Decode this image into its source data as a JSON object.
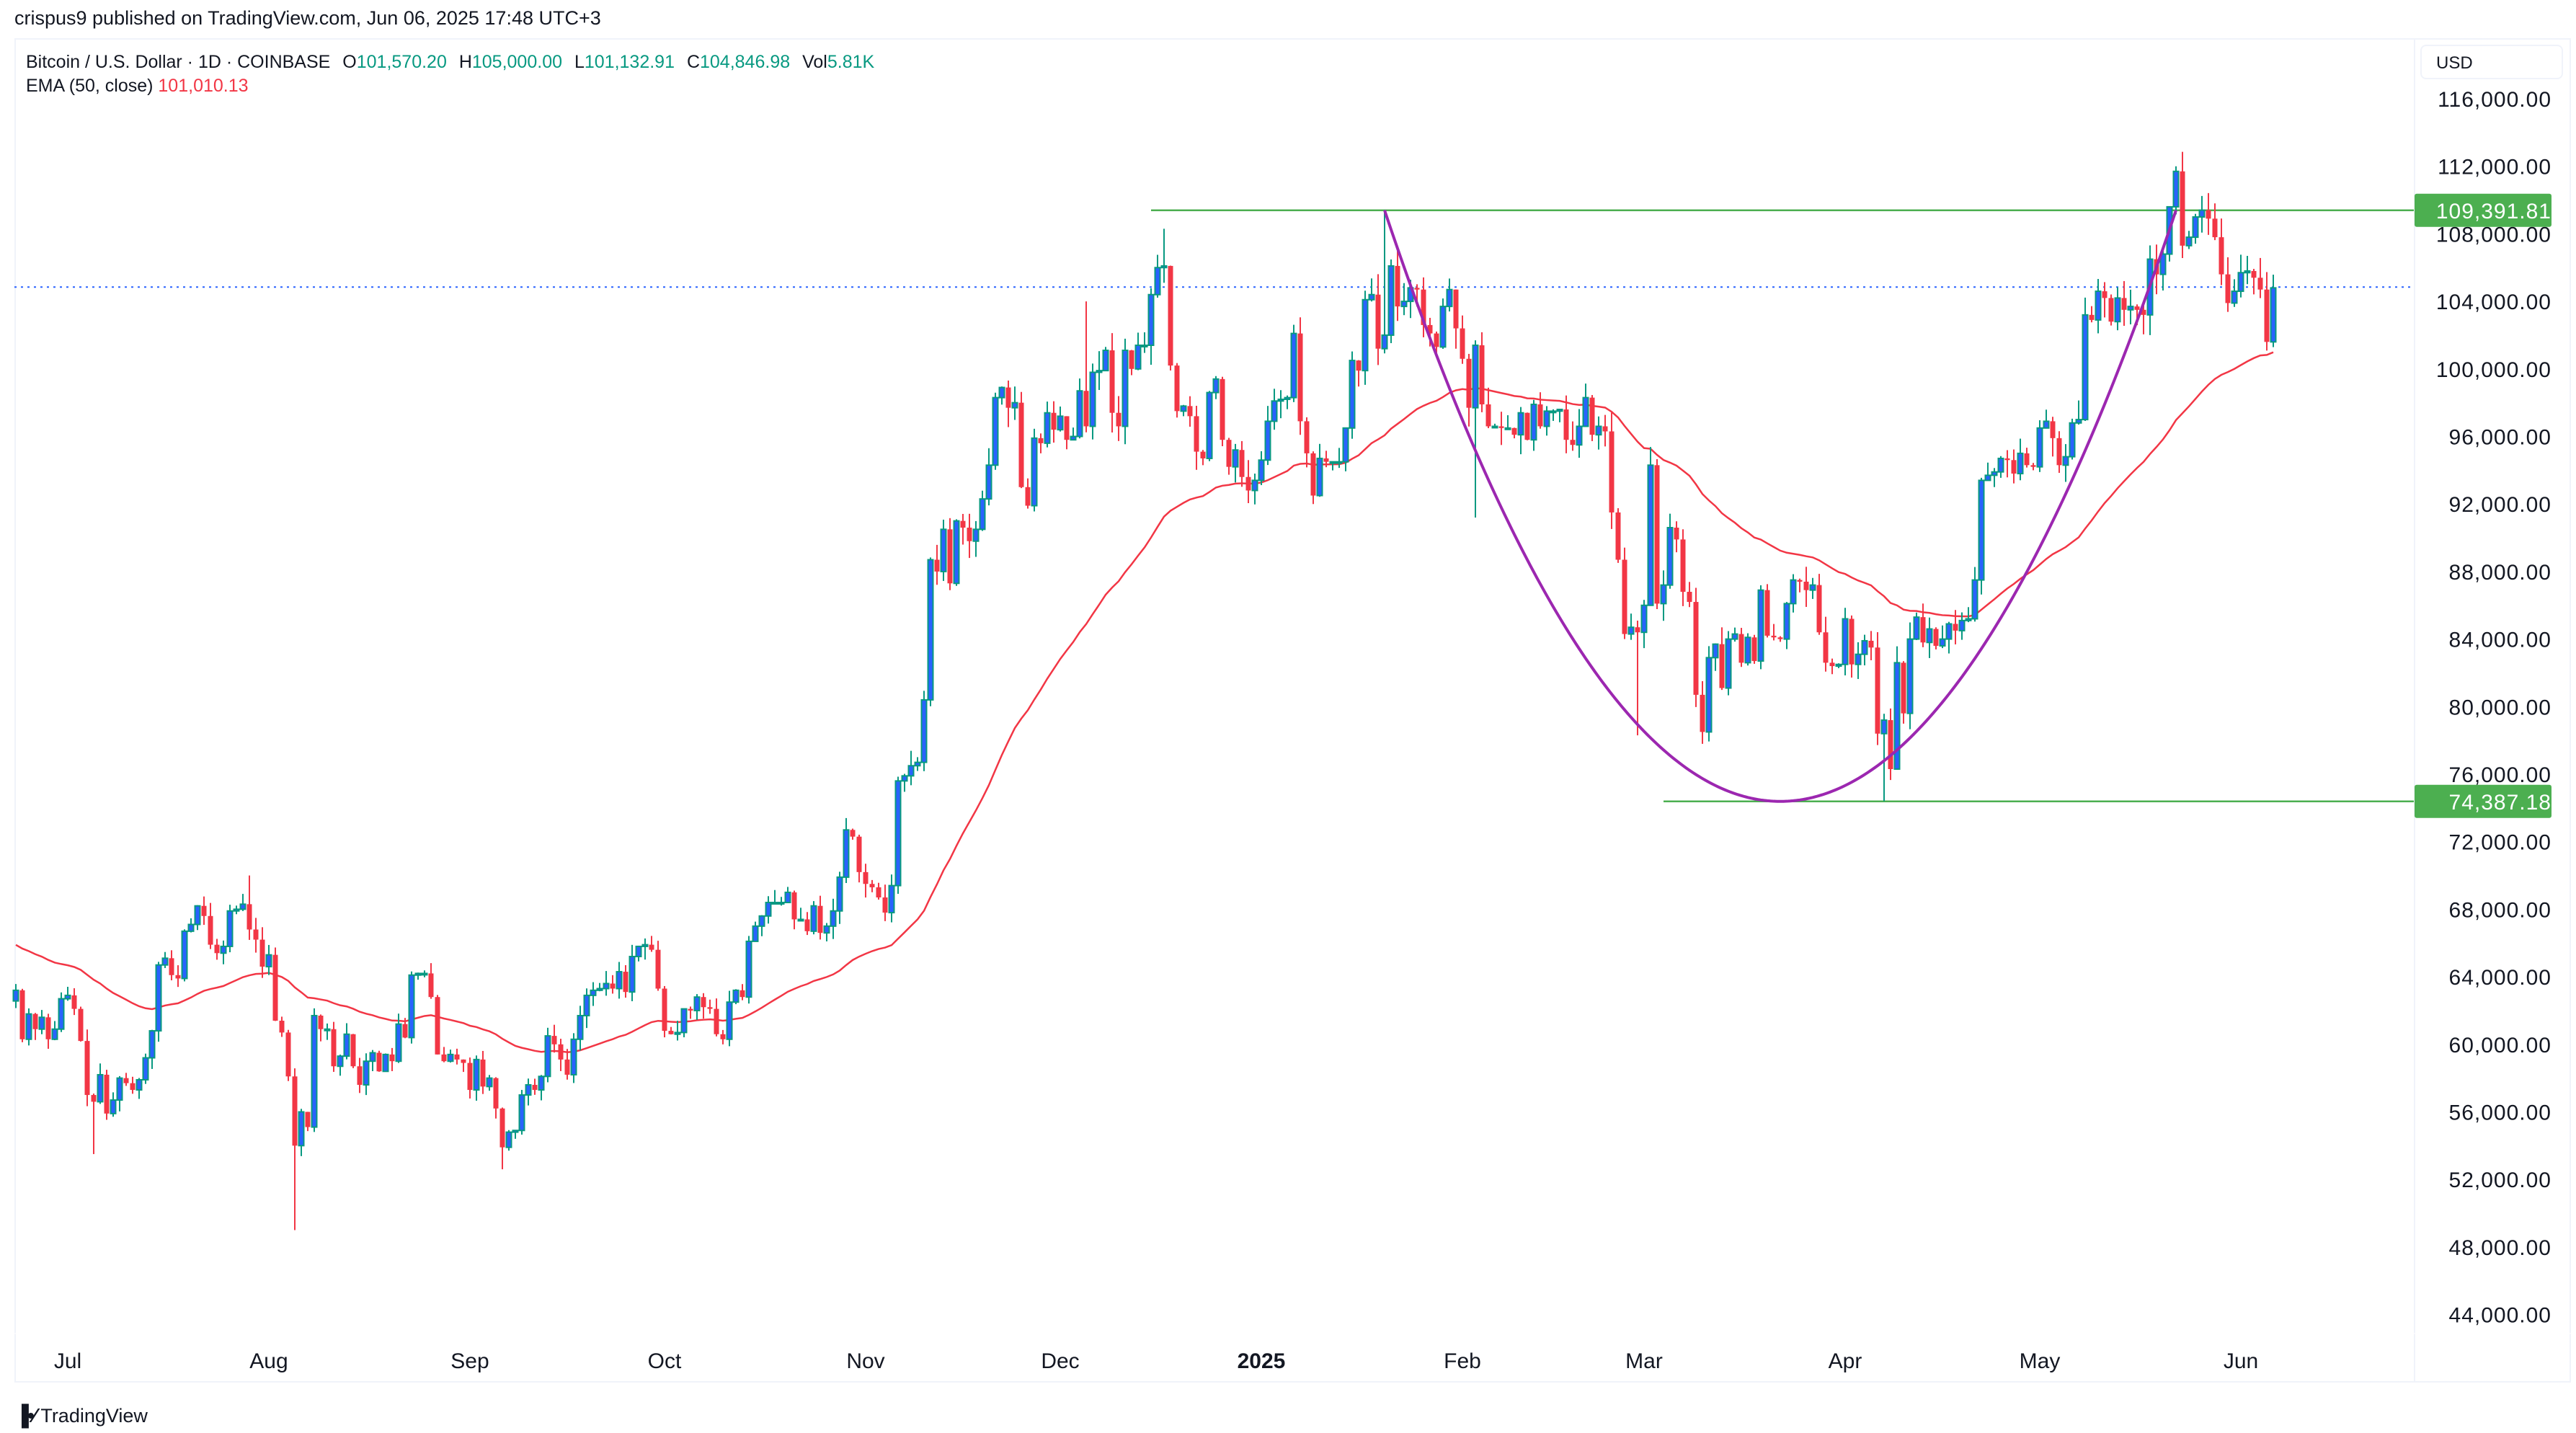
{
  "publisher_line": "crispus9 published on TradingView.com, Jun 06, 2025 17:48 UTC+3",
  "legend": {
    "symbol": "Bitcoin / U.S. Dollar · 1D · COINBASE",
    "open_label": "O",
    "open": "101,570.20",
    "high_label": "H",
    "high": "105,000.00",
    "low_label": "L",
    "low": "101,132.91",
    "close_label": "C",
    "close": "104,846.98",
    "vol_label": "Vol",
    "vol": "5.81K",
    "ema_label": "EMA (50, close)",
    "ema_value": "101,010.13"
  },
  "currency": "USD",
  "footer_brand": "TradingView",
  "colors": {
    "up_body": "#2962ff",
    "up_border": "#089981",
    "down": "#f23645",
    "ema": "#f23645",
    "level": "#4caf50",
    "cup": "#9c27b0",
    "last_price_line": "#2962ff"
  },
  "chart_data": {
    "type": "candlestick",
    "title": "",
    "start_date": "2024-06-23",
    "end_date": "2025-06-06",
    "interval": "1D",
    "unit": "USD (thousands in closes)",
    "closes_k": [
      63.2,
      60.3,
      61.8,
      60.9,
      61.6,
      60.3,
      60.9,
      62.7,
      62.9,
      62.1,
      60.2,
      57.0,
      56.6,
      58.2,
      55.9,
      56.7,
      58.0,
      57.7,
      57.3,
      57.9,
      59.2,
      60.8,
      64.7,
      65.1,
      64.1,
      63.9,
      66.7,
      67.1,
      68.2,
      67.6,
      65.9,
      65.4,
      65.8,
      67.9,
      68.0,
      68.3,
      66.8,
      66.2,
      64.6,
      65.3,
      61.4,
      60.7,
      58.1,
      54.0,
      56.0,
      55.1,
      61.7,
      60.9,
      60.9,
      58.7,
      59.3,
      60.6,
      58.7,
      57.6,
      59.0,
      59.5,
      58.4,
      59.4,
      59.0,
      61.2,
      60.4,
      64.1,
      64.2,
      64.2,
      62.8,
      59.4,
      59.0,
      59.4,
      59.1,
      58.9,
      57.3,
      59.1,
      57.5,
      58.0,
      56.2,
      53.9,
      54.8,
      54.9,
      57.0,
      57.6,
      57.3,
      58.1,
      60.5,
      60.0,
      59.1,
      58.2,
      60.3,
      61.7,
      62.9,
      63.2,
      63.3,
      63.6,
      63.3,
      64.3,
      63.1,
      65.2,
      65.8,
      65.9,
      65.6,
      63.3,
      60.8,
      60.6,
      60.7,
      62.1,
      62.0,
      62.8,
      62.2,
      62.1,
      60.6,
      60.3,
      62.5,
      63.2,
      62.8,
      66.1,
      67.0,
      67.6,
      68.4,
      68.4,
      68.4,
      69.0,
      67.4,
      67.4,
      66.7,
      68.2,
      66.6,
      67.0,
      67.9,
      69.9,
      72.7,
      72.3,
      70.2,
      69.5,
      69.3,
      68.7,
      67.8,
      69.4,
      75.6,
      75.9,
      76.5,
      76.7,
      80.4,
      88.7,
      88.0,
      90.5,
      87.3,
      91.0,
      90.6,
      89.8,
      90.5,
      92.3,
      94.3,
      98.3,
      98.9,
      97.7,
      98.0,
      93.0,
      91.9,
      95.9,
      95.6,
      97.4,
      96.4,
      97.2,
      95.8,
      96.0,
      98.7,
      96.6,
      99.8,
      99.9,
      101.1,
      97.4,
      96.6,
      101.1,
      100.0,
      101.4,
      101.4,
      104.4,
      106.0,
      106.1,
      100.2,
      97.5,
      97.8,
      97.2,
      95.1,
      94.7,
      98.6,
      99.4,
      95.8,
      94.2,
      95.2,
      93.6,
      92.8,
      93.4,
      94.6,
      96.9,
      98.1,
      98.2,
      98.3,
      102.1,
      96.9,
      95.0,
      92.5,
      94.7,
      94.5,
      94.5,
      94.5,
      96.5,
      100.5,
      99.9,
      104.1,
      104.4,
      101.2,
      102.0,
      106.1,
      103.7,
      104.0,
      104.8,
      104.7,
      102.6,
      102.1,
      101.3,
      103.7,
      104.7,
      102.4,
      100.6,
      97.7,
      101.4,
      97.9,
      96.6,
      96.6,
      96.5,
      96.5,
      96.1,
      97.4,
      95.8,
      97.9,
      96.6,
      97.5,
      97.5,
      97.6,
      95.8,
      95.5,
      96.6,
      98.3,
      96.1,
      96.6,
      96.3,
      91.5,
      88.7,
      84.3,
      84.7,
      84.4,
      86.0,
      94.3,
      86.1,
      87.2,
      90.6,
      89.9,
      86.8,
      86.2,
      80.7,
      78.5,
      82.9,
      83.7,
      81.1,
      84.0,
      84.3,
      82.6,
      84.1,
      82.7,
      86.9,
      84.2,
      84.1,
      84.0,
      86.1,
      87.5,
      87.4,
      86.9,
      87.2,
      84.4,
      82.6,
      82.4,
      82.5,
      85.2,
      82.5,
      83.1,
      83.9,
      83.5,
      78.4,
      79.2,
      76.3,
      82.6,
      79.6,
      84.0,
      85.3,
      83.8,
      84.6,
      83.6,
      84.0,
      84.9,
      84.5,
      85.1,
      85.2,
      87.5,
      93.4,
      93.7,
      93.9,
      94.7,
      94.6,
      93.8,
      95.0,
      94.3,
      94.2,
      96.5,
      96.9,
      95.9,
      94.3,
      94.8,
      96.8,
      97.0,
      103.2,
      102.9,
      104.6,
      104.2,
      102.8,
      104.2,
      103.5,
      103.7,
      103.5,
      103.2,
      106.5,
      105.6,
      106.8,
      109.6,
      111.7,
      107.3,
      107.8,
      109.0,
      109.4,
      108.9,
      107.8,
      105.6,
      103.9,
      104.6,
      105.7,
      105.8,
      105.4,
      104.7,
      101.6,
      104.8
    ],
    "extremes": [
      {
        "date": "2024-07-05",
        "low": 53.5
      },
      {
        "date": "2024-07-29",
        "high": 70.0
      },
      {
        "date": "2024-08-05",
        "low": 49.0
      },
      {
        "date": "2024-09-06",
        "low": 52.6
      },
      {
        "date": "2024-12-05",
        "high": 104.0
      },
      {
        "date": "2024-12-17",
        "high": 108.3
      },
      {
        "date": "2025-01-20",
        "high": 109.4
      },
      {
        "date": "2025-02-03",
        "low": 91.2
      },
      {
        "date": "2025-02-28",
        "low": 78.3
      },
      {
        "date": "2025-04-07",
        "low": 74.4
      },
      {
        "date": "2025-05-22",
        "high": 112.0
      }
    ],
    "indicator": {
      "name": "EMA (50, close)",
      "period": 50
    },
    "last_price": 104846.98,
    "levels": [
      {
        "label": "109,391.81",
        "price": 109391.81,
        "from_date": "2024-12-15"
      },
      {
        "label": "74,387.18",
        "price": 74387.18,
        "from_date": "2025-03-04"
      }
    ],
    "cup_curve": {
      "start": {
        "date": "2025-01-20",
        "price": 109391.81
      },
      "bottom": {
        "date": "2025-03-22",
        "price": 74387.18
      },
      "end": {
        "date": "2025-05-22",
        "price": 109391.81
      }
    },
    "ylim": [
      42000,
      118000
    ],
    "y_ticks": [
      {
        "value": 116000,
        "label": "116,000.00"
      },
      {
        "value": 112000,
        "label": "112,000.00"
      },
      {
        "value": 108000,
        "label": "108,000.00"
      },
      {
        "value": 104000,
        "label": "104,000.00"
      },
      {
        "value": 100000,
        "label": "100,000.00"
      },
      {
        "value": 96000,
        "label": "96,000.00"
      },
      {
        "value": 92000,
        "label": "92,000.00"
      },
      {
        "value": 88000,
        "label": "88,000.00"
      },
      {
        "value": 84000,
        "label": "84,000.00"
      },
      {
        "value": 80000,
        "label": "80,000.00"
      },
      {
        "value": 76000,
        "label": "76,000.00"
      },
      {
        "value": 72000,
        "label": "72,000.00"
      },
      {
        "value": 68000,
        "label": "68,000.00"
      },
      {
        "value": 64000,
        "label": "64,000.00"
      },
      {
        "value": 60000,
        "label": "60,000.00"
      },
      {
        "value": 56000,
        "label": "56,000.00"
      },
      {
        "value": 52000,
        "label": "52,000.00"
      },
      {
        "value": 48000,
        "label": "48,000.00"
      },
      {
        "value": 44000,
        "label": "44,000.00"
      }
    ],
    "x_ticks": [
      {
        "date": "2024-07-01",
        "label": "Jul"
      },
      {
        "date": "2024-08-01",
        "label": "Aug"
      },
      {
        "date": "2024-09-01",
        "label": "Sep"
      },
      {
        "date": "2024-10-01",
        "label": "Oct"
      },
      {
        "date": "2024-11-01",
        "label": "Nov"
      },
      {
        "date": "2024-12-01",
        "label": "Dec"
      },
      {
        "date": "2025-01-01",
        "label": "2025",
        "bold": true
      },
      {
        "date": "2025-02-01",
        "label": "Feb"
      },
      {
        "date": "2025-03-01",
        "label": "Mar"
      },
      {
        "date": "2025-04-01",
        "label": "Apr"
      },
      {
        "date": "2025-05-01",
        "label": "May"
      },
      {
        "date": "2025-06-01",
        "label": "Jun"
      }
    ],
    "grid": false
  }
}
